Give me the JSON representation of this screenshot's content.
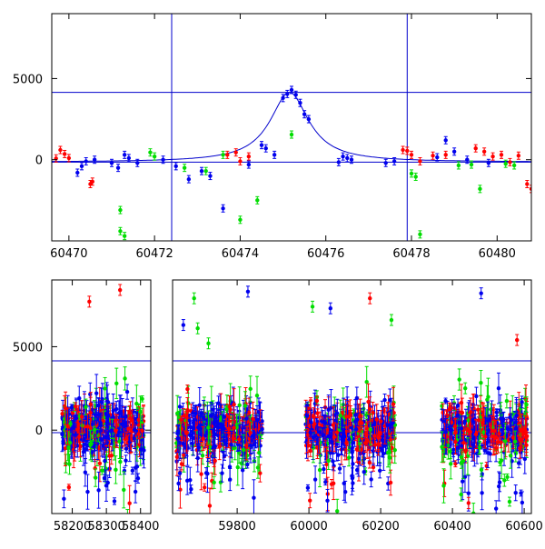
{
  "chart_data": [
    {
      "type": "scatter",
      "title": "",
      "xlabel": "",
      "ylabel": "",
      "xlim": [
        60469.6,
        60480.8
      ],
      "ylim": [
        -5000,
        9000
      ],
      "x_ticks": [
        60470,
        60472,
        60474,
        60476,
        60478,
        60480
      ],
      "y_ticks": [
        0,
        5000
      ],
      "reference_lines": {
        "horizontal": [
          4150,
          -150
        ],
        "vertical": [
          60472.4,
          60477.9
        ]
      },
      "model_curve": {
        "color": "#0000cc",
        "baseline": -150,
        "peak_x": 60475.15,
        "peak_y": 4150,
        "width": 0.55
      },
      "series": [
        {
          "color": "#ff0000",
          "points": [
            [
              60469.7,
              80
            ],
            [
              60469.8,
              600
            ],
            [
              60469.9,
              350
            ],
            [
              60470.0,
              100
            ],
            [
              60470.5,
              -1500
            ],
            [
              60470.55,
              -1350
            ],
            [
              60473.7,
              300
            ],
            [
              60473.9,
              450
            ],
            [
              60474.0,
              -100
            ],
            [
              60474.2,
              200
            ],
            [
              60477.8,
              600
            ],
            [
              60477.9,
              550
            ],
            [
              60478.0,
              300
            ],
            [
              60478.2,
              -100
            ],
            [
              60478.5,
              250
            ],
            [
              60478.8,
              300
            ],
            [
              60479.5,
              700
            ],
            [
              60479.7,
              500
            ],
            [
              60479.9,
              200
            ],
            [
              60480.1,
              300
            ],
            [
              60480.3,
              -150
            ],
            [
              60480.5,
              250
            ],
            [
              60480.7,
              -1500
            ],
            [
              60480.8,
              -1800
            ]
          ]
        },
        {
          "color": "#00dd00",
          "points": [
            [
              60471.2,
              -3100
            ],
            [
              60471.2,
              -4400
            ],
            [
              60471.3,
              -4700
            ],
            [
              60471.9,
              450
            ],
            [
              60472.0,
              200
            ],
            [
              60472.7,
              -500
            ],
            [
              60473.2,
              -700
            ],
            [
              60473.6,
              300
            ],
            [
              60474.0,
              -3700
            ],
            [
              60474.4,
              -2500
            ],
            [
              60475.2,
              1550
            ],
            [
              60478.0,
              -850
            ],
            [
              60478.1,
              -1050
            ],
            [
              60478.2,
              -4600
            ],
            [
              60479.1,
              -350
            ],
            [
              60479.4,
              -300
            ],
            [
              60479.6,
              -1800
            ],
            [
              60480.2,
              -250
            ],
            [
              60480.4,
              -350
            ]
          ]
        },
        {
          "color": "#0000ee",
          "points": [
            [
              60470.2,
              -800
            ],
            [
              60470.3,
              -400
            ],
            [
              60470.4,
              -100
            ],
            [
              60470.6,
              0
            ],
            [
              60471.0,
              -200
            ],
            [
              60471.15,
              -500
            ],
            [
              60471.3,
              300
            ],
            [
              60471.4,
              100
            ],
            [
              60471.6,
              -200
            ],
            [
              60472.2,
              0
            ],
            [
              60472.5,
              -400
            ],
            [
              60472.8,
              -1200
            ],
            [
              60473.1,
              -700
            ],
            [
              60473.3,
              -1000
            ],
            [
              60473.6,
              -3000
            ],
            [
              60474.2,
              -300
            ],
            [
              60474.5,
              900
            ],
            [
              60474.6,
              700
            ],
            [
              60474.8,
              300
            ],
            [
              60475.0,
              3800
            ],
            [
              60475.1,
              4050
            ],
            [
              60475.2,
              4300
            ],
            [
              60475.3,
              4000
            ],
            [
              60475.4,
              3500
            ],
            [
              60475.5,
              2800
            ],
            [
              60475.6,
              2500
            ],
            [
              60476.3,
              -150
            ],
            [
              60476.4,
              200
            ],
            [
              60476.5,
              100
            ],
            [
              60476.6,
              0
            ],
            [
              60477.4,
              -200
            ],
            [
              60477.6,
              -100
            ],
            [
              60478.6,
              150
            ],
            [
              60478.8,
              1200
            ],
            [
              60479.0,
              500
            ],
            [
              60479.3,
              0
            ],
            [
              60479.8,
              -200
            ]
          ]
        }
      ]
    },
    {
      "type": "scatter",
      "title": "",
      "xlabel": "",
      "ylabel": "",
      "ylim": [
        -5000,
        9000
      ],
      "y_ticks": [
        0,
        5000
      ],
      "broken_x_axis": true,
      "segments": [
        {
          "xlim": [
            58140,
            58430
          ],
          "x_ticks": [
            58200,
            58300,
            58400
          ]
        },
        {
          "xlim": [
            59620,
            60620
          ],
          "x_ticks": [
            59800,
            60000,
            60200,
            60400,
            60600
          ]
        }
      ],
      "reference_lines": {
        "horizontal": [
          4150,
          -150
        ]
      },
      "series_colors": [
        "#ff0000",
        "#00dd00",
        "#0000ee"
      ],
      "observing_seasons": [
        [
          58170,
          58410
        ],
        [
          59630,
          59870
        ],
        [
          59990,
          60240
        ],
        [
          60370,
          60610
        ]
      ],
      "notable_points": [
        {
          "color": "#ff0000",
          "x": 58250,
          "y": 7700
        },
        {
          "color": "#ff0000",
          "x": 58340,
          "y": 8400
        },
        {
          "color": "#0000ee",
          "x": 59650,
          "y": 6300
        },
        {
          "color": "#00dd00",
          "x": 59680,
          "y": 7900
        },
        {
          "color": "#00dd00",
          "x": 59690,
          "y": 6100
        },
        {
          "color": "#00dd00",
          "x": 59720,
          "y": 5200
        },
        {
          "color": "#0000ee",
          "x": 59830,
          "y": 8300
        },
        {
          "color": "#00dd00",
          "x": 60010,
          "y": 7400
        },
        {
          "color": "#0000ee",
          "x": 60060,
          "y": 7300
        },
        {
          "color": "#ff0000",
          "x": 60170,
          "y": 7900
        },
        {
          "color": "#00dd00",
          "x": 60230,
          "y": 6600
        },
        {
          "color": "#ff0000",
          "x": 60580,
          "y": 5400
        },
        {
          "color": "#0000ee",
          "x": 60480,
          "y": 8200
        }
      ]
    }
  ]
}
